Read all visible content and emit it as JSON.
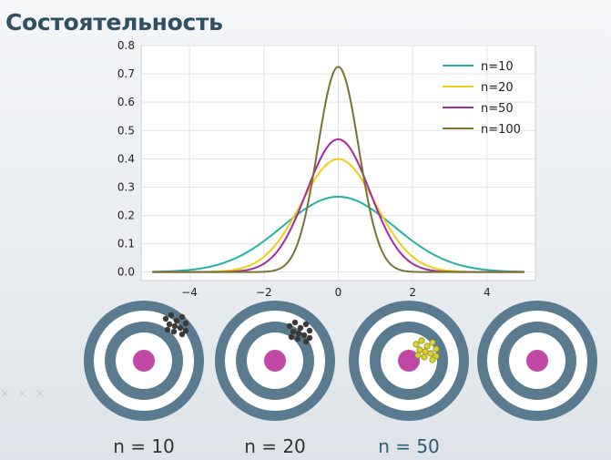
{
  "page": {
    "title": "Состоятельность"
  },
  "chart_data": {
    "type": "line",
    "title": "",
    "xlabel": "",
    "ylabel": "",
    "xlim": [
      -5.3,
      5.3
    ],
    "ylim": [
      -0.03,
      0.8
    ],
    "x_range": [
      -5,
      5
    ],
    "xticks": [
      -4,
      -2,
      0,
      2,
      4
    ],
    "xtick_labels": [
      "−4",
      "−2",
      "0",
      "2",
      "4"
    ],
    "yticks": [
      0.0,
      0.1,
      0.2,
      0.3,
      0.4,
      0.5,
      0.6,
      0.7,
      0.8
    ],
    "ytick_labels": [
      "0.0",
      "0.1",
      "0.2",
      "0.3",
      "0.4",
      "0.5",
      "0.6",
      "0.7",
      "0.8"
    ],
    "grid": true,
    "legend_position": "top-right",
    "series": [
      {
        "name": "n=10",
        "distribution": "normal",
        "mean": 0,
        "sd": 1.5,
        "peak": 0.266,
        "color": "#1fb3a8"
      },
      {
        "name": "n=20",
        "distribution": "normal",
        "mean": 0,
        "sd": 1.0,
        "peak": 0.399,
        "color": "#f0cd16"
      },
      {
        "name": "n=50",
        "distribution": "normal",
        "mean": 0,
        "sd": 0.85,
        "peak": 0.469,
        "color": "#a52a9e"
      },
      {
        "name": "n=100",
        "distribution": "normal",
        "mean": 0,
        "sd": 0.55,
        "peak": 0.725,
        "color": "#7a7233"
      }
    ]
  },
  "targets": {
    "ring_color": "#5a7a8f",
    "bullseye_color": "#c147a6",
    "items": [
      {
        "label": "n = 10",
        "label_color": "#333333",
        "shot_color": "#3a3a3a",
        "shot_count": 12
      },
      {
        "label": "n = 20",
        "label_color": "#333333",
        "shot_color": "#3a3a3a",
        "shot_count": 12
      },
      {
        "label": "n = 50",
        "label_color": "#2f5d78",
        "shot_color": "#d9d52a",
        "shot_count": 12
      },
      {
        "label": "",
        "label_color": "#333333",
        "shot_color": "",
        "shot_count": 0
      }
    ]
  }
}
